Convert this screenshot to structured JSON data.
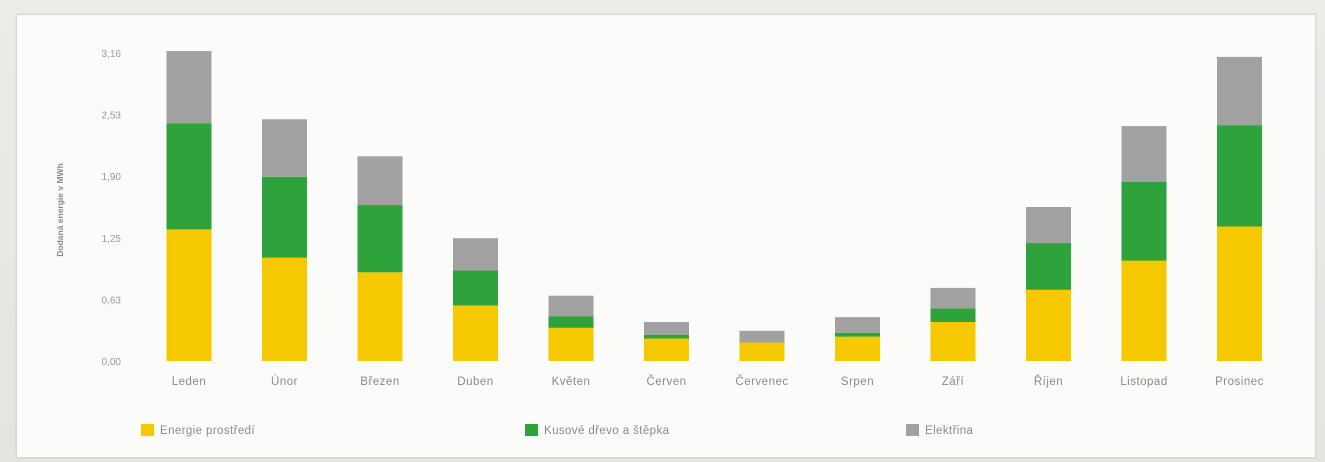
{
  "chart_data": {
    "type": "bar",
    "stacked": true,
    "ylabel": "Dodaná energie v MWh",
    "yticks": [
      "0,00",
      "0,63",
      "1,25",
      "1,90",
      "2,53",
      "3,16"
    ],
    "ylim": [
      0,
      3.16
    ],
    "grid": false,
    "legend_position": "bottom",
    "categories": [
      "Leden",
      "Únor",
      "Březen",
      "Duben",
      "Květen",
      "Červen",
      "Červenec",
      "Srpen",
      "Září",
      "Říjen",
      "Listopad",
      "Prosinec"
    ],
    "series": [
      {
        "name": "Energie prostředí",
        "color": "#f5c800",
        "values": [
          1.35,
          1.06,
          0.91,
          0.57,
          0.34,
          0.23,
          0.19,
          0.25,
          0.4,
          0.73,
          1.03,
          1.38
        ]
      },
      {
        "name": "Kusové dřevo a štěpka",
        "color": "#2ea33b",
        "values": [
          1.09,
          0.83,
          0.69,
          0.36,
          0.12,
          0.04,
          0.0,
          0.04,
          0.14,
          0.48,
          0.81,
          1.04
        ]
      },
      {
        "name": "Elektřina",
        "color": "#a1a1a1",
        "values": [
          0.74,
          0.59,
          0.5,
          0.33,
          0.21,
          0.13,
          0.12,
          0.16,
          0.21,
          0.37,
          0.57,
          0.7
        ]
      }
    ]
  }
}
